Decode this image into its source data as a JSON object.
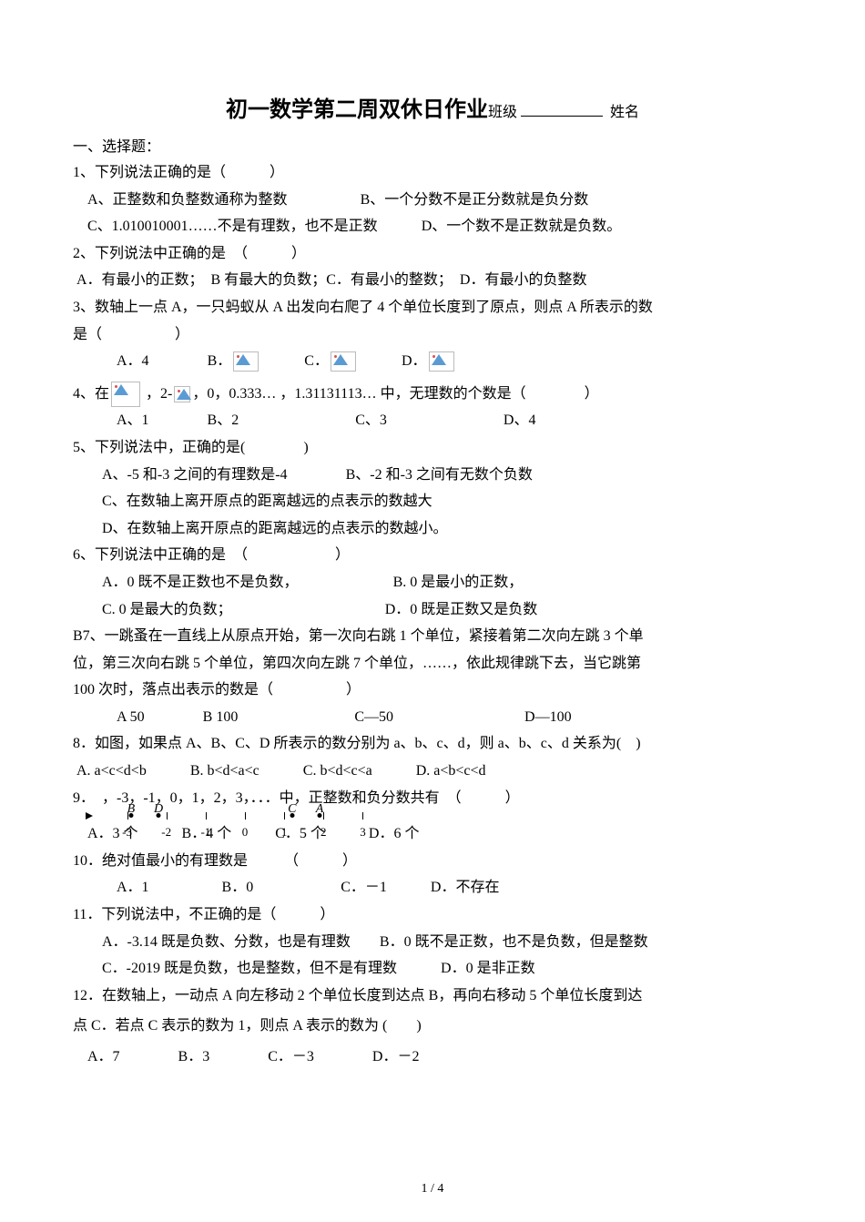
{
  "title": {
    "main": "初一数学第二周双休日作业",
    "class_label": "班级",
    "name_label": "姓名"
  },
  "section1": "一、选择题：",
  "q1": {
    "stem": "1、下列说法正确的是（　　　）",
    "a": "A、正整数和负整数通称为整数",
    "b": "B、一个分数不是正分数就是负分数",
    "c": "C、1.010010001……不是有理数，也不是正数",
    "d": "D、一个数不是正数就是负数。"
  },
  "q2": {
    "stem": "2、下列说法中正确的是　（　　　）",
    "a": "A．有最小的正数；　B 有最大的负数；C．有最小的整数；　D．有最小的负整数"
  },
  "q3": {
    "stem_a": "3、数轴上一点 A，一只蚂蚁从 A 出发向右爬了 4 个单位长度到了原点，则点 A 所表示的数",
    "stem_b": "是（　　　　　）",
    "opts_a": "A．4",
    "opts_b": "B．",
    "opts_c": "C．",
    "opts_d": "D．"
  },
  "q4": {
    "stem_a": "4、在",
    "stem_b": "，2-",
    "stem_c": "，0，0.333… ，1.31131113… 中，无理数的个数是（　　　　）",
    "opts": "A、1　　　　B、2　　　　　　　　C、3　　　　　　　　D、4"
  },
  "q5": {
    "stem": "5、下列说法中，正确的是(　　　　)",
    "a": "A、-5 和-3 之间的有理数是-4",
    "b": "B、-2 和-3 之间有无数个负数",
    "c": "C、在数轴上离开原点的距离越远的点表示的数越大",
    "d": "D、在数轴上离开原点的距离越远的点表示的数越小。"
  },
  "q6": {
    "stem": "6、下列说法中正确的是　（　　　　　　）",
    "a": "A．0 既不是正数也不是负数，",
    "b": "B. 0 是最小的正数，",
    "c": "C. 0 是最大的负数；",
    "d": "D．0 既是正数又是负数"
  },
  "q7": {
    "l1": "B7、一跳蚤在一直线上从原点开始，第一次向右跳 1 个单位，紧接着第二次向左跳 3 个单",
    "l2": "位，第三次向右跳 5 个单位，第四次向左跳 7 个单位，……，依此规律跳下去，当它跳第",
    "l3": "100 次时，落点出表示的数是（　　　　　）",
    "opts": "A 50　　　　B 100　　　　　　　　C—50　　　　　　　　　D—100"
  },
  "q8": {
    "stem": "8．如图，如果点 A、B、C、D 所表示的数分别为 a、b、c、d，则 a、b、c、d 关系为(　)",
    "opts": "A. a<c<d<b　　　B. b<d<a<c　　　C. b<d<c<a　　　D. a<b<c<d"
  },
  "q9": {
    "stem_a": "9．",
    "stem_b": "，-3，-1，0，1，2，3，．．．中，正整数和负分数共有　（　　　）",
    "opts": "A．3 个　　　B．4 个　　　C．5 个　　　D．6 个"
  },
  "numberline": {
    "min": -3.5,
    "max": 3.5,
    "ticks": [
      -3,
      -2,
      -1,
      0,
      1,
      2,
      3
    ],
    "points": [
      {
        "label": "B",
        "x": -2.9
      },
      {
        "label": "D",
        "x": -2.2
      },
      {
        "label": "C",
        "x": 1.2
      },
      {
        "label": "A",
        "x": 1.9
      }
    ]
  },
  "q10": {
    "stem": "10．绝对值最小的有理数是　　　（　　　）",
    "opts": "A．1　　　　　B．0　　　　　　C．－1　　　D．不存在"
  },
  "q11": {
    "stem": "11．下列说法中，不正确的是（　　　）",
    "a": "A．-3.14 既是负数、分数，也是有理数",
    "b": "B．0 既不是正数，也不是负数，但是整数",
    "c": "C．-2019 既是负数，也是整数，但不是有理数",
    "d": "D．0 是非正数"
  },
  "q12": {
    "l1": "12．在数轴上，一动点 A 向左移动 2 个单位长度到达点 B，再向右移动 5 个单位长度到达",
    "l2": "点 C．若点 C 表示的数为 1，则点 A 表示的数为  (　　)",
    "opts": "A．7　　　　B．3　　　　C．－3　　　　D．－2"
  },
  "pagenum": "1 / 4",
  "colors": {
    "text": "#000000",
    "bg": "#ffffff",
    "icon_tri": "#5a9bd4",
    "icon_dot": "#d9534f",
    "icon_border": "#bbbbbb"
  },
  "fontsizes": {
    "title": 24,
    "body": 16,
    "ticks": 13,
    "pagenum": 14
  }
}
